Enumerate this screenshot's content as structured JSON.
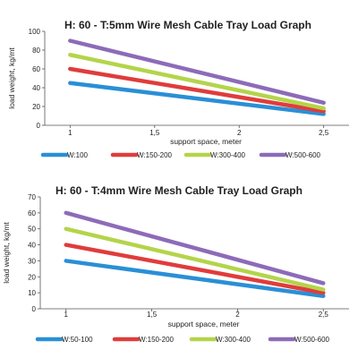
{
  "chart_data": [
    {
      "type": "line",
      "title": "H: 60 - T:5mm Wire Mesh Cable Tray Load Graph",
      "xlabel": "support space, meter",
      "ylabel": "load weight, kg/mt",
      "x_ticks": [
        "1",
        "1,5",
        "2",
        "2,5"
      ],
      "y_ticks": [
        "0",
        "20",
        "40",
        "60",
        "80",
        "100"
      ],
      "xlim": [
        0.85,
        2.65
      ],
      "ylim": [
        0,
        100
      ],
      "grid": false,
      "legend_position": "bottom",
      "x": [
        1,
        2.5
      ],
      "series": [
        {
          "name": "W:100",
          "color": "#2a8fd6",
          "values": [
            45,
            12
          ]
        },
        {
          "name": "W:150-200",
          "color": "#e03c3c",
          "values": [
            60,
            15
          ]
        },
        {
          "name": "W:300-400",
          "color": "#b4d44a",
          "values": [
            75,
            18
          ]
        },
        {
          "name": "W:500-600",
          "color": "#8d6bb8",
          "values": [
            90,
            24
          ]
        }
      ]
    },
    {
      "type": "line",
      "title": "H: 60 - T:4mm Wire Mesh Cable Tray Load Graph",
      "xlabel": "support space, meter",
      "ylabel": "load weight, kg/mt",
      "x_ticks": [
        "1",
        "1,5",
        "2",
        "2,5"
      ],
      "y_ticks": [
        "0",
        "10",
        "20",
        "30",
        "40",
        "50",
        "60",
        "70"
      ],
      "xlim": [
        0.85,
        2.65
      ],
      "ylim": [
        0,
        70
      ],
      "grid": false,
      "legend_position": "bottom",
      "x": [
        1,
        2.5
      ],
      "series": [
        {
          "name": "W:50-100",
          "color": "#2a8fd6",
          "values": [
            30,
            8
          ]
        },
        {
          "name": "W:150-200",
          "color": "#e03c3c",
          "values": [
            40,
            10
          ]
        },
        {
          "name": "W:300-400",
          "color": "#b4d44a",
          "values": [
            50,
            12
          ]
        },
        {
          "name": "W:500-600",
          "color": "#8d6bb8",
          "values": [
            60,
            16
          ]
        }
      ]
    }
  ]
}
